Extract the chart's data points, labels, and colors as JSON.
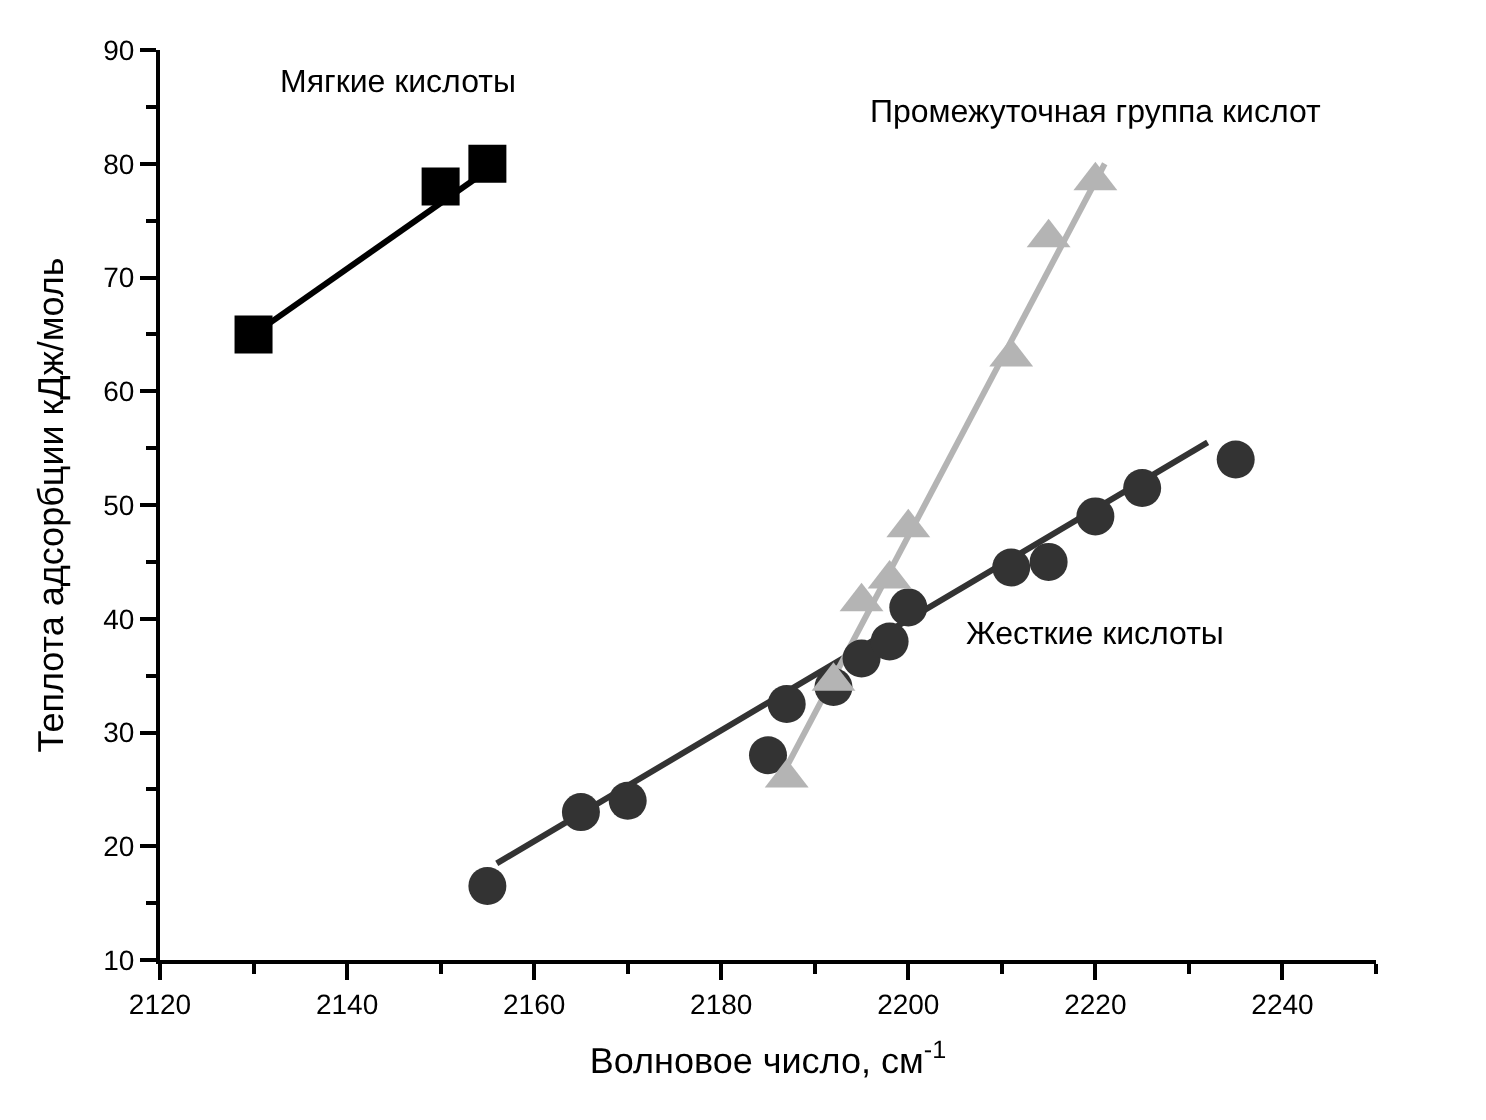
{
  "chart_data": {
    "type": "scatter",
    "xlabel": "Волновое число, см$^{-1}$",
    "ylabel": "Теплота адсорбции кДж/моль",
    "xlim": [
      2120,
      2250
    ],
    "xticks": [
      2120,
      2140,
      2160,
      2180,
      2200,
      2220,
      2240
    ],
    "ylim": [
      10,
      90
    ],
    "yticks": [
      10,
      20,
      30,
      40,
      50,
      60,
      70,
      80,
      90
    ],
    "legend": false,
    "series": [
      {
        "type": "line",
        "color": "#000000",
        "marker": "none",
        "x": [
          2130,
          2156
        ],
        "values": [
          65,
          80
        ]
      },
      {
        "type": "line",
        "color": "#333333",
        "marker": "none",
        "x": [
          2156,
          2232
        ],
        "values": [
          18.5,
          55.5
        ]
      },
      {
        "type": "line",
        "color": "#b4b4b4",
        "marker": "none",
        "x": [
          2187,
          2221
        ],
        "values": [
          27,
          80
        ]
      },
      {
        "name": "Мягкие кислоты",
        "color": "#000000",
        "marker": "square",
        "x": [
          2130,
          2150,
          2155
        ],
        "values": [
          65,
          78,
          80
        ]
      },
      {
        "name": "Жесткие кислоты",
        "color": "#333333",
        "marker": "circle",
        "x": [
          2155,
          2165,
          2170,
          2185,
          2187,
          2192,
          2195,
          2198,
          2200,
          2211,
          2215,
          2220,
          2225,
          2235
        ],
        "values": [
          16.5,
          23,
          24,
          28,
          32.5,
          34,
          36.5,
          38,
          41,
          44.5,
          45,
          49,
          51.5,
          54
        ]
      },
      {
        "name": "Промежуточная группа кислот",
        "color": "#b4b4b4",
        "marker": "triangle",
        "x": [
          2187,
          2192,
          2195,
          2198,
          2200,
          2211,
          2215,
          2220
        ],
        "values": [
          26,
          34.5,
          41.5,
          43.5,
          48,
          63,
          73.5,
          78.5
        ]
      }
    ]
  }
}
